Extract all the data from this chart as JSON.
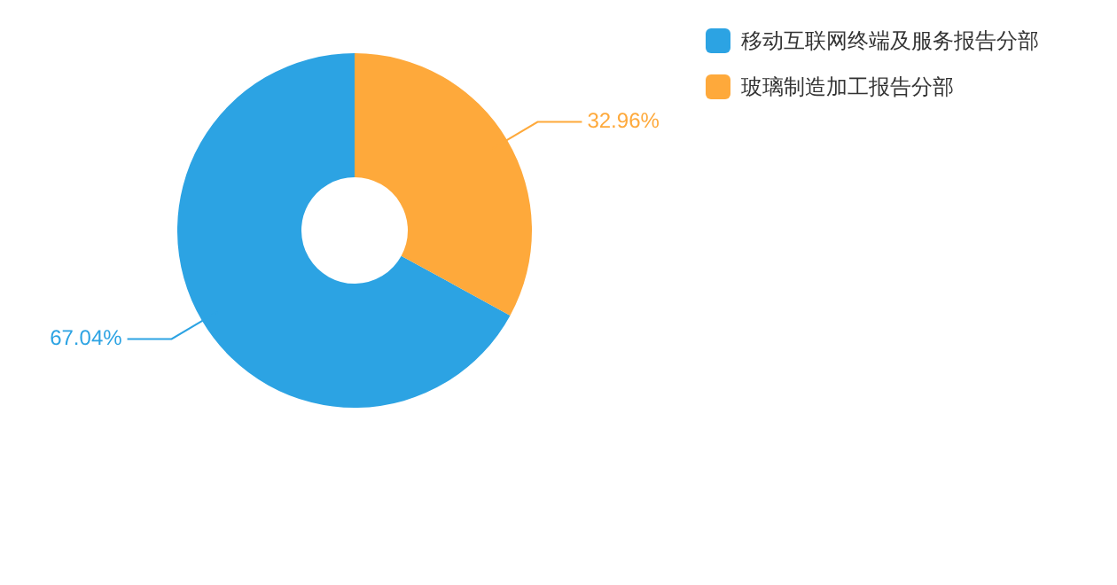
{
  "chart_data": {
    "type": "donut",
    "categories": [
      "移动互联网终端及服务报告分部",
      "玻璃制造加工报告分部"
    ],
    "values": [
      67.04,
      32.96
    ],
    "colors": [
      "#2ca3e3",
      "#fea93b"
    ],
    "value_labels": [
      "67.04%",
      "32.96%"
    ],
    "legend": "top right"
  }
}
